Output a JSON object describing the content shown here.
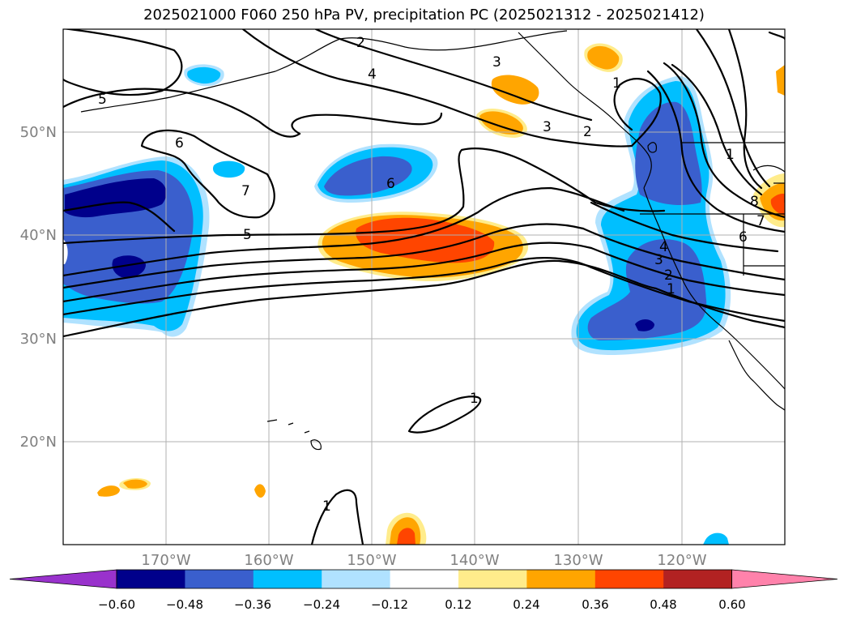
{
  "title": "2025021000 F060 250 hPa PV, precipitation PC (2025021312 - 2025021412)",
  "axes": {
    "lon_ticks": [
      "170°W",
      "160°W",
      "150°W",
      "140°W",
      "130°W",
      "120°W"
    ],
    "lat_ticks": [
      "50°N",
      "40°N",
      "30°N",
      "20°N"
    ]
  },
  "colorbar": {
    "ticks": [
      "−0.60",
      "−0.48",
      "−0.36",
      "−0.24",
      "−0.12",
      "0.12",
      "0.24",
      "0.36",
      "0.48",
      "0.60"
    ],
    "colors": [
      "#9932cc",
      "#00008b",
      "#3a5fcd",
      "#00bfff",
      "#b0e2ff",
      "#ffffff",
      "#ffec8b",
      "#ffa500",
      "#ff4500",
      "#b22222",
      "#ff82ab"
    ]
  },
  "pv_contour_labels": [
    "2",
    "3",
    "4",
    "5",
    "6",
    "7",
    "1",
    "3",
    "2",
    "1",
    "6",
    "4",
    "3",
    "2",
    "1",
    "6",
    "8",
    "7",
    "5",
    "1",
    "1"
  ],
  "colors": {
    "neg_light": "#b0e2ff",
    "neg_1": "#00bfff",
    "neg_2": "#3a5fcd",
    "neg_3": "#00008b",
    "pos_1": "#ffec8b",
    "pos_2": "#ffa500",
    "pos_3": "#ff4500"
  }
}
